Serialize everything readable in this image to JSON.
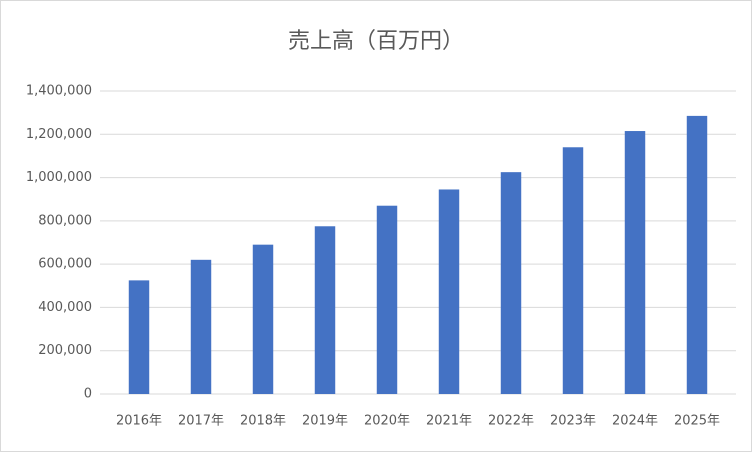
{
  "chart_data": {
    "type": "bar",
    "title": "売上高（百万円）",
    "categories": [
      "2016年",
      "2017年",
      "2018年",
      "2019年",
      "2020年",
      "2021年",
      "2022年",
      "2023年",
      "2024年",
      "2025年"
    ],
    "values": [
      525000,
      620000,
      690000,
      775000,
      870000,
      945000,
      1025000,
      1140000,
      1215000,
      1285000
    ],
    "color": "#4472c4",
    "ylim": [
      0,
      1400000
    ],
    "yticks": [
      0,
      {
        "value": 200000,
        "label": "200,000"
      },
      {
        "value": 400000,
        "label": "400,000"
      },
      {
        "value": 600000,
        "label": "600,000"
      },
      {
        "value": 800000,
        "label": "800,000"
      },
      {
        "value": 1000000,
        "label": "1,000,000"
      },
      {
        "value": 1200000,
        "label": "1,200,000"
      },
      {
        "value": 1400000,
        "label": "1,400,000"
      }
    ],
    "grid": true
  }
}
